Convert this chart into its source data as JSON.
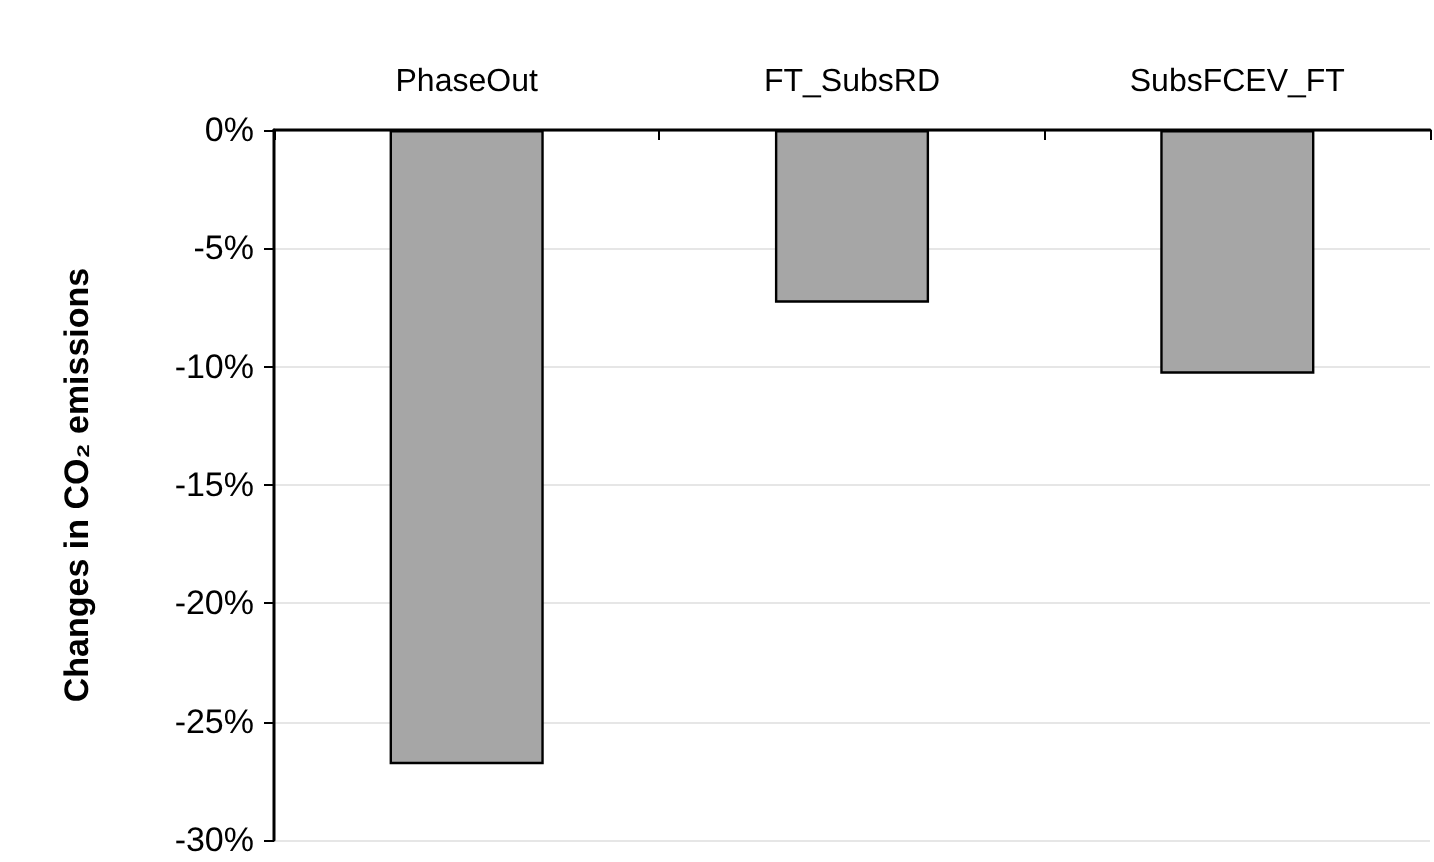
{
  "chart_data": {
    "type": "bar",
    "ylabel": "Changes in CO₂ emissions",
    "categories": [
      "PhaseOut",
      "FT_SubsRD",
      "SubsFCEV_FT"
    ],
    "values": [
      -26.8,
      -7.3,
      -10.3
    ],
    "color": "#a6a6a6",
    "ylim": [
      -30,
      0
    ],
    "yticks": [
      {
        "value": 0,
        "label": "0%"
      },
      {
        "value": -5,
        "label": "-5%"
      },
      {
        "value": -10,
        "label": "-10%"
      },
      {
        "value": -15,
        "label": "-15%"
      },
      {
        "value": -20,
        "label": "-20%"
      },
      {
        "value": -25,
        "label": "-25%"
      },
      {
        "value": -30,
        "label": "-30%"
      }
    ],
    "grid": "y"
  }
}
